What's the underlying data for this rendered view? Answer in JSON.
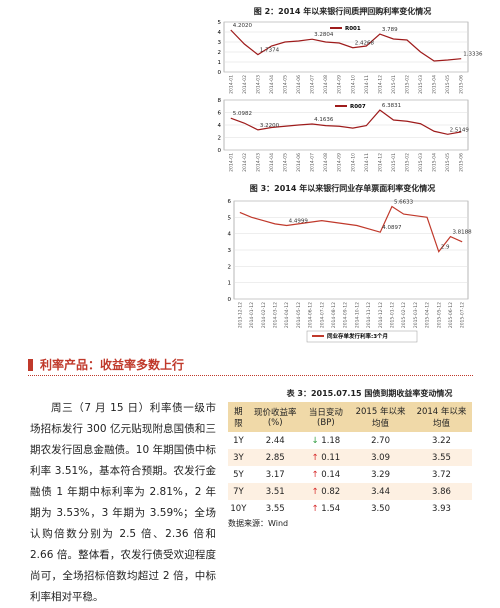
{
  "figure2": {
    "title": "图 2：2014 年以来银行间质押回购利率变化情况",
    "charts": [
      {
        "type": "line",
        "categories": [
          "2014-01",
          "2014-02",
          "2014-03",
          "2014-04",
          "2014-05",
          "2014-06",
          "2014-07",
          "2014-08",
          "2014-09",
          "2014-10",
          "2014-11",
          "2014-12",
          "2015-01",
          "2015-02",
          "2015-03",
          "2015-04",
          "2015-05",
          "2015-06"
        ],
        "series": [
          {
            "name": "R001",
            "color": "#9e1b1b",
            "values": [
              4.202,
              2.8,
              1.7374,
              2.6,
              3.0,
              3.1,
              3.2804,
              3.0,
              2.9,
              2.4268,
              2.6,
              3.789,
              3.3,
              3.2,
              2.0,
              1.1,
              1.2,
              1.3336
            ],
            "value_labels": [
              "4.2020",
              null,
              "1.7374",
              null,
              null,
              null,
              "3.2804",
              null,
              null,
              "2.4268",
              null,
              "3.789",
              null,
              null,
              null,
              null,
              null,
              "1.3336"
            ]
          }
        ],
        "ylim": [
          0,
          5
        ],
        "yticks": [
          0,
          1,
          2,
          3,
          4,
          5
        ]
      },
      {
        "type": "line",
        "categories": [
          "2014-01",
          "2014-02",
          "2014-03",
          "2014-04",
          "2014-05",
          "2014-06",
          "2014-07",
          "2014-08",
          "2014-09",
          "2014-10",
          "2014-11",
          "2014-12",
          "2015-01",
          "2015-02",
          "2015-03",
          "2015-04",
          "2015-05",
          "2015-06"
        ],
        "series": [
          {
            "name": "R007",
            "color": "#9e1b1b",
            "values": [
              5.0982,
              4.3,
              3.22,
              3.6,
              3.8,
              4.0,
              4.1636,
              3.9,
              3.8,
              3.5,
              3.9,
              6.3831,
              4.8,
              4.6,
              4.2,
              3.0,
              2.5149,
              2.9
            ],
            "value_labels": [
              "5.0982",
              null,
              "3.2200",
              null,
              null,
              null,
              "4.1636",
              null,
              null,
              null,
              null,
              "6.3831",
              null,
              null,
              null,
              null,
              "2.5149",
              null
            ]
          }
        ],
        "ylim": [
          0,
          8
        ],
        "yticks": [
          0,
          2,
          4,
          6,
          8
        ]
      }
    ]
  },
  "figure3": {
    "title": "图 3：2014 年以来银行同业存单票面利率变化情况",
    "chart": {
      "type": "line",
      "categories": [
        "2013-12-12",
        "2014-01-12",
        "2014-02-12",
        "2014-03-12",
        "2014-04-12",
        "2014-05-12",
        "2014-06-12",
        "2014-07-12",
        "2014-08-12",
        "2014-09-12",
        "2014-10-12",
        "2014-11-12",
        "2014-12-12",
        "2015-01-12",
        "2015-02-12",
        "2015-03-12",
        "2015-04-12",
        "2015-05-12",
        "2015-06-12",
        "2015-07-12"
      ],
      "series": [
        {
          "name": "同业存单发行利率:3个月",
          "color": "#c0392b",
          "values": [
            5.3,
            5.0,
            4.8,
            4.6,
            4.4999,
            4.6,
            4.7,
            4.8,
            4.7,
            4.6,
            4.5,
            4.3,
            4.0897,
            5.6633,
            5.2,
            5.1,
            5.0,
            2.9,
            3.8188,
            3.5
          ],
          "value_labels": [
            null,
            null,
            null,
            null,
            "4.4999",
            null,
            null,
            null,
            null,
            null,
            null,
            null,
            "4.0897",
            "5.6633",
            null,
            null,
            null,
            "2.9",
            "3.8188",
            null
          ]
        }
      ],
      "ylim": [
        0,
        6
      ],
      "yticks": [
        0,
        1,
        2,
        3,
        4,
        5,
        6
      ]
    }
  },
  "section_title": "利率产品：收益率多数上行",
  "paragraph": "周三（7 月 15 日）利率债一级市场招标发行 300 亿元贴现附息国债和三期农发行固息金融债。10 年期国债中标利率 3.51%，基本符合预期。农发行金融债 1 年期中标利率为 2.81%，2 年期为 3.53%，3 年期为 3.59%；全场认购倍数分别为 2.5 倍、2.36 倍和 2.66 倍。整体看，农发行债受欢迎程度尚可，全场招标倍数均超过 2 倍，中标利率相对平稳。",
  "table": {
    "title": "表 3：2015.07.15 国债到期收益率变动情况",
    "headers": [
      "期限",
      "现价收益率(%)",
      "当日变动(BP)",
      "2015 年以来均值",
      "2014 年以来均值"
    ],
    "rows": [
      [
        "1Y",
        "2.44",
        "↓ 1.18",
        "2.70",
        "3.22"
      ],
      [
        "3Y",
        "2.85",
        "↑ 0.11",
        "3.09",
        "3.55"
      ],
      [
        "5Y",
        "3.17",
        "↑ 0.14",
        "3.29",
        "3.72"
      ],
      [
        "7Y",
        "3.51",
        "↑ 0.82",
        "3.44",
        "3.86"
      ],
      [
        "10Y",
        "3.55",
        "↑ 1.54",
        "3.50",
        "3.93"
      ]
    ],
    "source": "数据来源：Wind"
  }
}
